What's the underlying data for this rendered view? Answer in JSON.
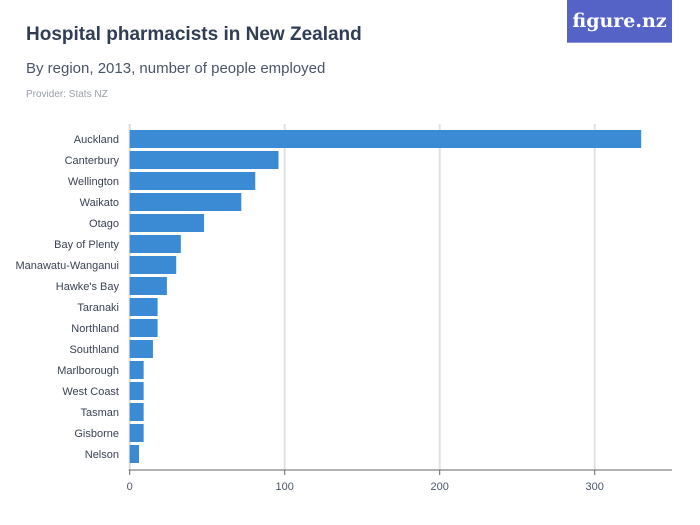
{
  "header": {
    "title": "Hospital pharmacists in New Zealand",
    "subtitle": "By region, 2013, number of people employed",
    "provider": "Provider: Stats NZ",
    "logo_text": "figure.nz"
  },
  "colors": {
    "bar": "#3a8ad4",
    "logo_bg": "#5563c7"
  },
  "chart_data": {
    "type": "bar",
    "orientation": "horizontal",
    "categories": [
      "Auckland",
      "Canterbury",
      "Wellington",
      "Waikato",
      "Otago",
      "Bay of Plenty",
      "Manawatu-Wanganui",
      "Hawke's Bay",
      "Taranaki",
      "Northland",
      "Southland",
      "Marlborough",
      "West Coast",
      "Tasman",
      "Gisborne",
      "Nelson"
    ],
    "values": [
      330,
      96,
      81,
      72,
      48,
      33,
      30,
      24,
      18,
      18,
      15,
      9,
      9,
      9,
      9,
      6
    ],
    "xlim": [
      0,
      350
    ],
    "xticks": [
      "0",
      "100",
      "200",
      "300"
    ],
    "grid": true
  }
}
